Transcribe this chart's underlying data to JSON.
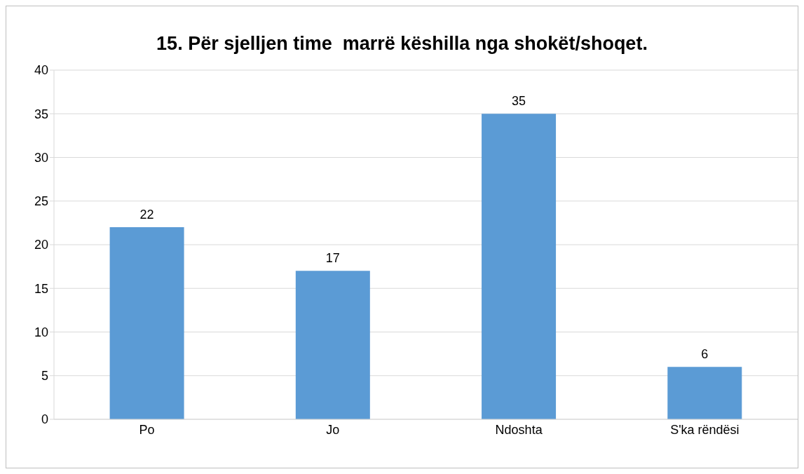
{
  "chart_data": {
    "type": "bar",
    "title": "15. Për sjelljen time  marrë këshilla nga shokët/shoqet.",
    "categories": [
      "Po",
      "Jo",
      "Ndoshta",
      "S'ka rëndësi"
    ],
    "values": [
      22,
      17,
      35,
      6
    ],
    "color": "#5b9bd5",
    "ylim": [
      0,
      40
    ],
    "yticks": [
      0,
      5,
      10,
      15,
      20,
      25,
      30,
      35,
      40
    ],
    "grid": "y",
    "data_labels": true
  }
}
